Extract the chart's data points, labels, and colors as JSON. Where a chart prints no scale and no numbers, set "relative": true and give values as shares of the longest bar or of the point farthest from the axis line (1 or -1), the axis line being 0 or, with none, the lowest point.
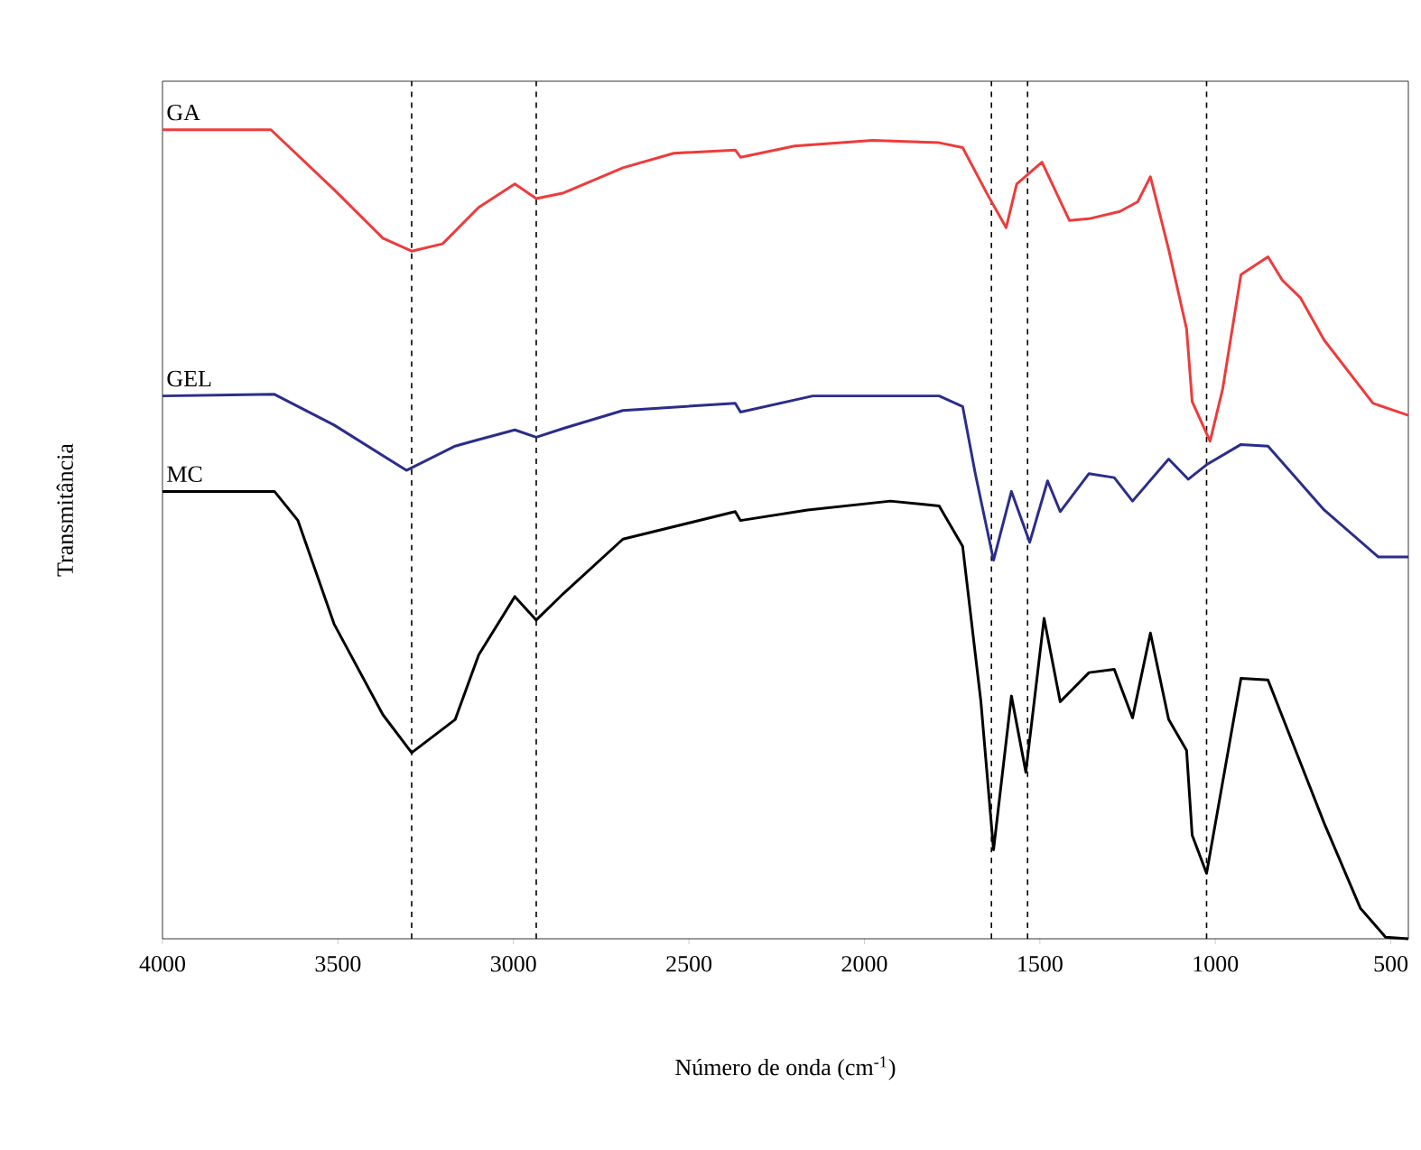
{
  "chart_data": {
    "type": "line",
    "xlabel": "Número de onda (cm$^{-1}$)",
    "ylabel": "Transmitância",
    "relative": true,
    "xlim": [
      4000,
      450
    ],
    "xticks": [
      4000,
      3500,
      3000,
      2500,
      2000,
      1500,
      1000,
      500
    ],
    "tick_labels": "x",
    "grid": false,
    "marker": "none",
    "line_style": "solid",
    "series": [
      {
        "name": "GA",
        "color": "#ee3b3b",
        "x": [
          4000,
          3691,
          3511,
          3372,
          3290,
          3202,
          3099,
          2996,
          2935,
          2857,
          2688,
          2543,
          2368,
          2353,
          2199,
          1977,
          1787,
          1720,
          1648,
          1596,
          1566,
          1494,
          1416,
          1360,
          1272,
          1221,
          1185,
          1133,
          1082,
          1066,
          1015,
          979,
          927,
          850,
          809,
          757,
          690,
          551,
          450
        ],
        "values": [
          1.0,
          1.0,
          0.926,
          0.866,
          0.85,
          0.859,
          0.904,
          0.933,
          0.915,
          0.922,
          0.953,
          0.971,
          0.975,
          0.966,
          0.98,
          0.987,
          0.984,
          0.978,
          0.919,
          0.879,
          0.933,
          0.96,
          0.888,
          0.89,
          0.899,
          0.911,
          0.942,
          0.852,
          0.754,
          0.664,
          0.615,
          0.68,
          0.821,
          0.843,
          0.814,
          0.792,
          0.74,
          0.662,
          0.647
        ]
      },
      {
        "name": "GEL",
        "color": "#2b2d8a",
        "x": [
          4000,
          3681,
          3511,
          3305,
          3166,
          3099,
          2996,
          2935,
          2857,
          2688,
          2368,
          2353,
          2147,
          1787,
          1720,
          1684,
          1632,
          1581,
          1529,
          1478,
          1442,
          1360,
          1288,
          1236,
          1133,
          1077,
          1025,
          927,
          850,
          690,
          536,
          450
        ],
        "values": [
          0.671,
          0.673,
          0.635,
          0.579,
          0.609,
          0.617,
          0.629,
          0.62,
          0.631,
          0.653,
          0.662,
          0.651,
          0.671,
          0.671,
          0.658,
          0.575,
          0.468,
          0.553,
          0.49,
          0.566,
          0.528,
          0.575,
          0.57,
          0.541,
          0.593,
          0.568,
          0.586,
          0.611,
          0.609,
          0.53,
          0.472,
          0.472
        ]
      },
      {
        "name": "MC",
        "color": "#000000",
        "x": [
          4000,
          3681,
          3614,
          3511,
          3372,
          3290,
          3166,
          3099,
          2996,
          2935,
          2857,
          2688,
          2368,
          2353,
          2162,
          1926,
          1787,
          1720,
          1668,
          1632,
          1581,
          1540,
          1488,
          1442,
          1360,
          1288,
          1236,
          1185,
          1133,
          1082,
          1066,
          1025,
          927,
          850,
          757,
          690,
          587,
          515,
          450
        ],
        "values": [
          0.553,
          0.553,
          0.517,
          0.389,
          0.277,
          0.23,
          0.271,
          0.351,
          0.423,
          0.394,
          0.427,
          0.494,
          0.528,
          0.517,
          0.53,
          0.541,
          0.535,
          0.485,
          0.293,
          0.11,
          0.3,
          0.206,
          0.396,
          0.293,
          0.329,
          0.333,
          0.273,
          0.378,
          0.271,
          0.233,
          0.128,
          0.081,
          0.322,
          0.32,
          0.217,
          0.143,
          0.038,
          0.002,
          0.0
        ]
      }
    ],
    "ref_lines": [
      {
        "axis": "x",
        "value": 3290,
        "color": "#000000",
        "line_style": "dashed"
      },
      {
        "axis": "x",
        "value": 2935,
        "color": "#000000",
        "line_style": "dashed"
      },
      {
        "axis": "x",
        "value": 1638,
        "color": "#000000",
        "line_style": "dashed"
      },
      {
        "axis": "x",
        "value": 1535,
        "color": "#000000",
        "line_style": "dashed"
      },
      {
        "axis": "x",
        "value": 1025,
        "color": "#000000",
        "line_style": "dashed"
      }
    ]
  }
}
